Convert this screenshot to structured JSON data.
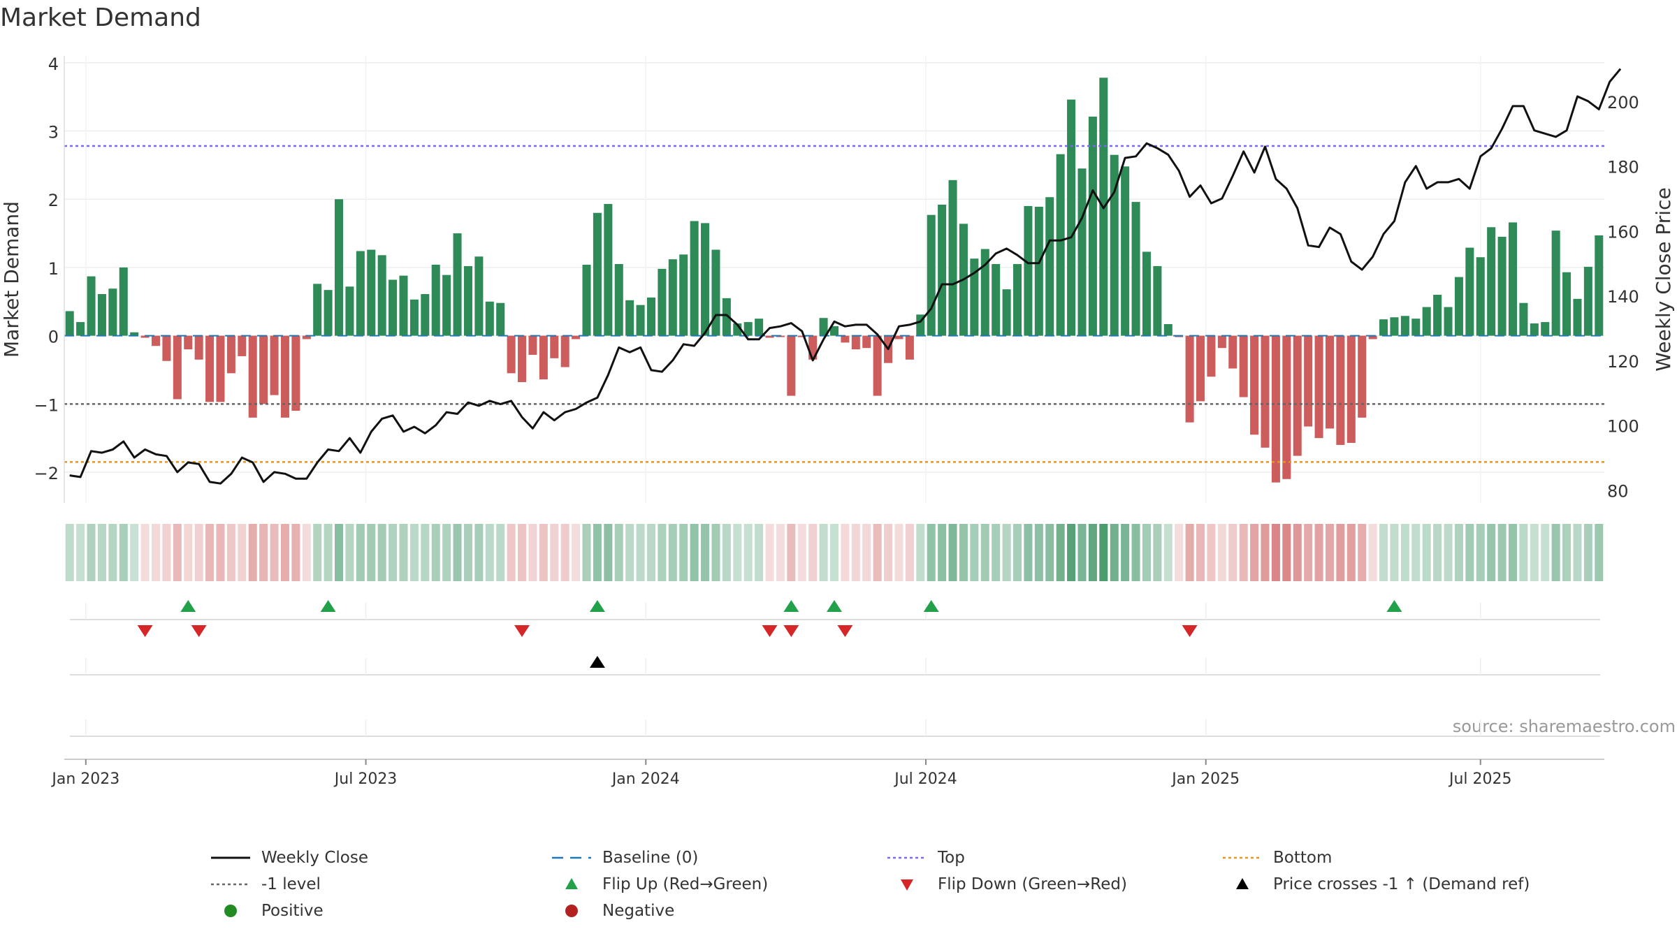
{
  "chart_data": {
    "type": "bar",
    "title": "Market Demand",
    "ylabel": "Market Demand",
    "y2label": "Weekly Close Price",
    "ylim": [
      -2.45,
      4.1
    ],
    "y2lim": [
      76,
      214
    ],
    "yticks": [
      -2,
      -1,
      0,
      1,
      2,
      3,
      4
    ],
    "ytick_labels": [
      "−2",
      "−1",
      "0",
      "1",
      "2",
      "3",
      "4"
    ],
    "y2ticks": [
      80,
      100,
      120,
      140,
      160,
      180,
      200
    ],
    "y2tick_labels": [
      "80",
      "100",
      "120",
      "140",
      "160",
      "180",
      "200"
    ],
    "xtick_labels": [
      "Jan 2023",
      "Jul 2023",
      "Jan 2024",
      "Jul 2024",
      "Jan 2025",
      "Jul 2025"
    ],
    "xtick_week_index": [
      1.5,
      27.5,
      53.5,
      79.5,
      105.5,
      131
    ],
    "reference_lines": {
      "baseline": 0,
      "top": 2.78,
      "minus_one": -1,
      "bottom": -1.85
    },
    "demand": [
      0.36,
      0.2,
      0.87,
      0.61,
      0.69,
      1.0,
      0.05,
      -0.03,
      -0.15,
      -0.37,
      -0.93,
      -0.2,
      -0.35,
      -0.97,
      -0.97,
      -0.55,
      -0.3,
      -1.2,
      -1.0,
      -0.87,
      -1.2,
      -1.1,
      -0.05,
      0.76,
      0.67,
      2.0,
      0.72,
      1.24,
      1.26,
      1.18,
      0.82,
      0.88,
      0.53,
      0.61,
      1.04,
      0.89,
      1.5,
      1.02,
      1.16,
      0.5,
      0.48,
      -0.55,
      -0.68,
      -0.28,
      -0.64,
      -0.33,
      -0.46,
      -0.05,
      1.04,
      1.8,
      1.93,
      1.05,
      0.52,
      0.45,
      0.56,
      0.98,
      1.12,
      1.19,
      1.68,
      1.65,
      1.26,
      0.55,
      0.18,
      0.2,
      0.25,
      -0.03,
      -0.02,
      -0.88,
      -0.02,
      -0.35,
      0.26,
      0.14,
      -0.1,
      -0.2,
      -0.18,
      -0.88,
      -0.4,
      -0.05,
      -0.35,
      0.31,
      1.77,
      1.92,
      2.28,
      1.64,
      1.13,
      1.27,
      1.05,
      0.68,
      1.05,
      1.9,
      1.89,
      2.03,
      2.66,
      3.46,
      2.45,
      3.21,
      3.78,
      2.65,
      2.48,
      1.96,
      1.23,
      1.02,
      0.17,
      -0.02,
      -1.27,
      -0.96,
      -0.6,
      -0.18,
      -0.48,
      -0.9,
      -1.45,
      -1.64,
      -2.15,
      -2.1,
      -1.76,
      -1.33,
      -1.5,
      -1.36,
      -1.6,
      -1.57,
      -1.2,
      -0.05,
      0.24,
      0.27,
      0.29,
      0.25,
      0.42,
      0.6,
      0.42,
      0.86,
      1.29,
      1.15,
      1.59,
      1.45,
      1.66,
      0.48,
      0.18,
      0.2,
      1.54,
      0.93,
      0.54,
      1.01,
      1.47
    ],
    "series": [
      {
        "name": "Weekly Close",
        "axis": "right",
        "values": [
          84.5,
          84,
          92,
          91.5,
          92.5,
          95,
          90,
          92.5,
          91,
          90.5,
          85.5,
          88.5,
          88,
          82.5,
          82,
          85,
          90,
          88.5,
          82.5,
          85.5,
          85,
          83.5,
          83.5,
          88.5,
          92.5,
          92,
          96,
          91.5,
          98,
          102,
          103,
          98,
          99.5,
          97.5,
          100,
          104,
          103.5,
          107,
          106,
          107.5,
          106.5,
          107.5,
          102.5,
          99,
          104,
          101.5,
          104,
          105,
          107,
          108.5,
          115.5,
          124,
          122.5,
          124,
          117,
          116.5,
          120,
          125,
          124.5,
          128.5,
          134,
          134,
          131,
          126.5,
          126.5,
          130,
          130.5,
          131.5,
          129,
          120,
          126.5,
          132,
          130.5,
          131,
          131,
          128,
          123.5,
          130.5,
          131,
          132,
          136,
          143.5,
          143.5,
          145,
          147,
          149.5,
          153,
          154.5,
          152.5,
          150,
          150,
          157,
          157,
          158,
          164,
          172.5,
          167,
          172,
          182.5,
          183,
          187,
          185.5,
          183.5,
          178.5,
          170.5,
          174,
          168.5,
          170,
          177,
          184.5,
          178,
          186,
          176,
          173,
          167,
          155.5,
          155,
          161,
          159,
          150.5,
          148,
          152,
          159,
          163,
          175,
          180,
          173,
          175,
          175,
          176,
          173,
          183,
          185.5,
          191.5,
          198.5,
          198.5,
          191,
          190,
          189,
          191,
          201.5,
          200,
          197.5,
          206,
          210
        ]
      }
    ],
    "flip_up_weeks": [
      11,
      24,
      49,
      67,
      71,
      80,
      123
    ],
    "flip_down_weeks": [
      7,
      12,
      42,
      65,
      67,
      72,
      104
    ],
    "price_cross_weeks": [
      49
    ],
    "source": "source: sharemaestro.com"
  },
  "legend": [
    {
      "label": "Weekly Close"
    },
    {
      "label": "Baseline (0)"
    },
    {
      "label": "Top"
    },
    {
      "label": "Bottom"
    },
    {
      "label": "-1 level"
    },
    {
      "label": "Flip Up (Red→Green)"
    },
    {
      "label": "Flip Down (Green→Red)"
    },
    {
      "label": "Price crosses -1 ↑ (Demand ref)"
    },
    {
      "label": "Positive"
    },
    {
      "label": "Negative"
    }
  ],
  "colors": {
    "positive": "#2e8b57",
    "negative": "#cd5c5c",
    "close": "#111111",
    "baseline": "#1f77b4",
    "top": "#7b68ee",
    "minus_one": "#666666",
    "bottom": "#e6961e",
    "flip_up": "#22a04a",
    "flip_down": "#d62728",
    "cross": "#000000",
    "legend_positive": "#228b22",
    "legend_negative": "#b22222"
  }
}
